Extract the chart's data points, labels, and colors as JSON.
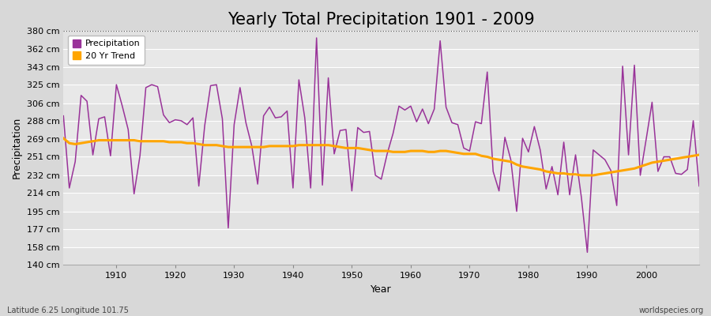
{
  "title": "Yearly Total Precipitation 1901 - 2009",
  "xlabel": "Year",
  "ylabel": "Precipitation",
  "subtitle_left": "Latitude 6.25 Longitude 101.75",
  "subtitle_right": "worldspecies.org",
  "years": [
    1901,
    1902,
    1903,
    1904,
    1905,
    1906,
    1907,
    1908,
    1911,
    1912,
    1913,
    1914,
    1915,
    1916,
    1917,
    1918,
    1919,
    1920,
    1921,
    1922,
    1923,
    1924,
    1925,
    1926,
    1927,
    1928,
    1929,
    1930,
    1931,
    1932,
    1933,
    1934,
    1935,
    1936,
    1937,
    1938,
    1939,
    1940,
    1941,
    1942,
    1943,
    1944,
    1945,
    1946,
    1947,
    1948,
    1949,
    1950,
    1951,
    1952,
    1953,
    1954,
    1955,
    1956,
    1957,
    1958,
    1959,
    1960,
    1961,
    1962,
    1963,
    1964,
    1965,
    1966,
    1967,
    1968,
    1969,
    1970,
    1971,
    1972,
    1973,
    1974,
    1975,
    1976,
    1977,
    1978,
    1979,
    1980,
    1981,
    1982,
    1983,
    1984,
    1985,
    1986,
    1987,
    1988,
    1989,
    1990,
    1991,
    1992,
    1993,
    1994,
    1995,
    1996,
    1997,
    1998,
    1999,
    2000,
    2001,
    2002,
    2003,
    2004,
    2005,
    2006,
    2007,
    2008,
    2009
  ],
  "precip": [
    293,
    219,
    246,
    314,
    308,
    253,
    290,
    292,
    325,
    303,
    279,
    213,
    252,
    322,
    325,
    323,
    294,
    286,
    289,
    288,
    284,
    291,
    221,
    283,
    324,
    325,
    290,
    178,
    284,
    322,
    286,
    262,
    223,
    293,
    302,
    291,
    292,
    298,
    219,
    330,
    291,
    219,
    373,
    222,
    332,
    254,
    278,
    279,
    216,
    281,
    276,
    277,
    232,
    228,
    254,
    275,
    303,
    299,
    303,
    287,
    300,
    285,
    300,
    370,
    302,
    286,
    284,
    260,
    257,
    287,
    285,
    338,
    236,
    216,
    271,
    248,
    195,
    270,
    256,
    282,
    258,
    218,
    241,
    212,
    266,
    212,
    253,
    209,
    153,
    258,
    253,
    248,
    237,
    201,
    344,
    253,
    345,
    232,
    269,
    307,
    236,
    251,
    251,
    234,
    233,
    238,
    288,
    221
  ],
  "precip_all_years": [
    1901,
    1902,
    1903,
    1904,
    1905,
    1906,
    1907,
    1908,
    1909,
    1910,
    1911,
    1912,
    1913,
    1914,
    1915,
    1916,
    1917,
    1918,
    1919,
    1920,
    1921,
    1922,
    1923,
    1924,
    1925,
    1926,
    1927,
    1928,
    1929,
    1930,
    1931,
    1932,
    1933,
    1934,
    1935,
    1936,
    1937,
    1938,
    1939,
    1940,
    1941,
    1942,
    1943,
    1944,
    1945,
    1946,
    1947,
    1948,
    1949,
    1950,
    1951,
    1952,
    1953,
    1954,
    1955,
    1956,
    1957,
    1958,
    1959,
    1960,
    1961,
    1962,
    1963,
    1964,
    1965,
    1966,
    1967,
    1968,
    1969,
    1970,
    1971,
    1972,
    1973,
    1974,
    1975,
    1976,
    1977,
    1978,
    1979,
    1980,
    1981,
    1982,
    1983,
    1984,
    1985,
    1986,
    1987,
    1988,
    1989,
    1990,
    1991,
    1992,
    1993,
    1994,
    1995,
    1996,
    1997,
    1998,
    1999,
    2000,
    2001,
    2002,
    2003,
    2004,
    2005,
    2006,
    2007,
    2008,
    2009
  ],
  "precip_all": [
    293,
    219,
    246,
    314,
    308,
    253,
    290,
    292,
    252,
    325,
    303,
    279,
    213,
    252,
    322,
    325,
    323,
    294,
    286,
    289,
    288,
    284,
    291,
    221,
    283,
    324,
    325,
    290,
    178,
    284,
    322,
    286,
    262,
    223,
    293,
    302,
    291,
    292,
    298,
    219,
    330,
    291,
    219,
    373,
    222,
    332,
    254,
    278,
    279,
    216,
    281,
    276,
    277,
    232,
    228,
    254,
    275,
    303,
    299,
    303,
    287,
    300,
    285,
    300,
    370,
    302,
    286,
    284,
    260,
    257,
    287,
    285,
    338,
    236,
    216,
    271,
    248,
    195,
    270,
    256,
    282,
    258,
    218,
    241,
    212,
    266,
    212,
    253,
    209,
    153,
    258,
    253,
    248,
    237,
    201,
    344,
    253,
    345,
    232,
    269,
    307,
    236,
    251,
    251,
    234,
    233,
    238,
    288,
    221
  ],
  "trend_all_years": [
    1901,
    1902,
    1903,
    1904,
    1905,
    1906,
    1907,
    1908,
    1909,
    1910,
    1911,
    1912,
    1913,
    1914,
    1915,
    1916,
    1917,
    1918,
    1919,
    1920,
    1921,
    1922,
    1923,
    1924,
    1925,
    1926,
    1927,
    1928,
    1929,
    1930,
    1931,
    1932,
    1933,
    1934,
    1935,
    1936,
    1937,
    1938,
    1939,
    1940,
    1941,
    1942,
    1943,
    1944,
    1945,
    1946,
    1947,
    1948,
    1949,
    1950,
    1951,
    1952,
    1953,
    1954,
    1955,
    1956,
    1957,
    1958,
    1959,
    1960,
    1961,
    1962,
    1963,
    1964,
    1965,
    1966,
    1967,
    1968,
    1969,
    1970,
    1971,
    1972,
    1973,
    1974,
    1975,
    1976,
    1977,
    1978,
    1979,
    1980,
    1981,
    1982,
    1983,
    1984,
    1985,
    1986,
    1987,
    1988,
    1989,
    1990,
    1991,
    1992,
    1993,
    1994,
    1995,
    1996,
    1997,
    1998,
    1999,
    2000,
    2001,
    2002,
    2003,
    2004,
    2005,
    2006,
    2007,
    2008,
    2009
  ],
  "trend_all": [
    270,
    265,
    264,
    265,
    266,
    267,
    268,
    268,
    268,
    268,
    268,
    268,
    268,
    267,
    267,
    267,
    267,
    267,
    266,
    266,
    266,
    265,
    265,
    264,
    263,
    263,
    263,
    262,
    261,
    261,
    261,
    261,
    261,
    261,
    261,
    262,
    262,
    262,
    262,
    262,
    263,
    263,
    263,
    263,
    263,
    263,
    262,
    261,
    260,
    260,
    260,
    259,
    258,
    257,
    257,
    257,
    256,
    256,
    256,
    257,
    257,
    257,
    256,
    256,
    257,
    257,
    256,
    255,
    254,
    254,
    254,
    252,
    251,
    249,
    248,
    247,
    246,
    243,
    241,
    240,
    239,
    238,
    236,
    235,
    234,
    234,
    233,
    233,
    232,
    232,
    232,
    233,
    234,
    235,
    236,
    237,
    238,
    239,
    241,
    243,
    245,
    246,
    247,
    248,
    249,
    250,
    251,
    252,
    253
  ],
  "precip_color": "#993399",
  "trend_color": "#FFA500",
  "fig_bg_color": "#d8d8d8",
  "plot_bg_color": "#e8e8e8",
  "grid_color": "#ffffff",
  "ylim": [
    140,
    380
  ],
  "xlim": [
    1901,
    2009
  ],
  "yticks": [
    140,
    158,
    177,
    195,
    214,
    232,
    251,
    269,
    288,
    306,
    325,
    343,
    362,
    380
  ],
  "ytick_labels": [
    "140 cm",
    "158 cm",
    "177 cm",
    "195 cm",
    "214 cm",
    "232 cm",
    "251 cm",
    "269 cm",
    "288 cm",
    "306 cm",
    "325 cm",
    "343 cm",
    "362 cm",
    "380 cm"
  ],
  "xticks": [
    1910,
    1920,
    1930,
    1940,
    1950,
    1960,
    1970,
    1980,
    1990,
    2000
  ],
  "title_fontsize": 15,
  "axis_label_fontsize": 9,
  "tick_fontsize": 8,
  "legend_labels": [
    "Precipitation",
    "20 Yr Trend"
  ],
  "top_dotted_line_y": 380
}
